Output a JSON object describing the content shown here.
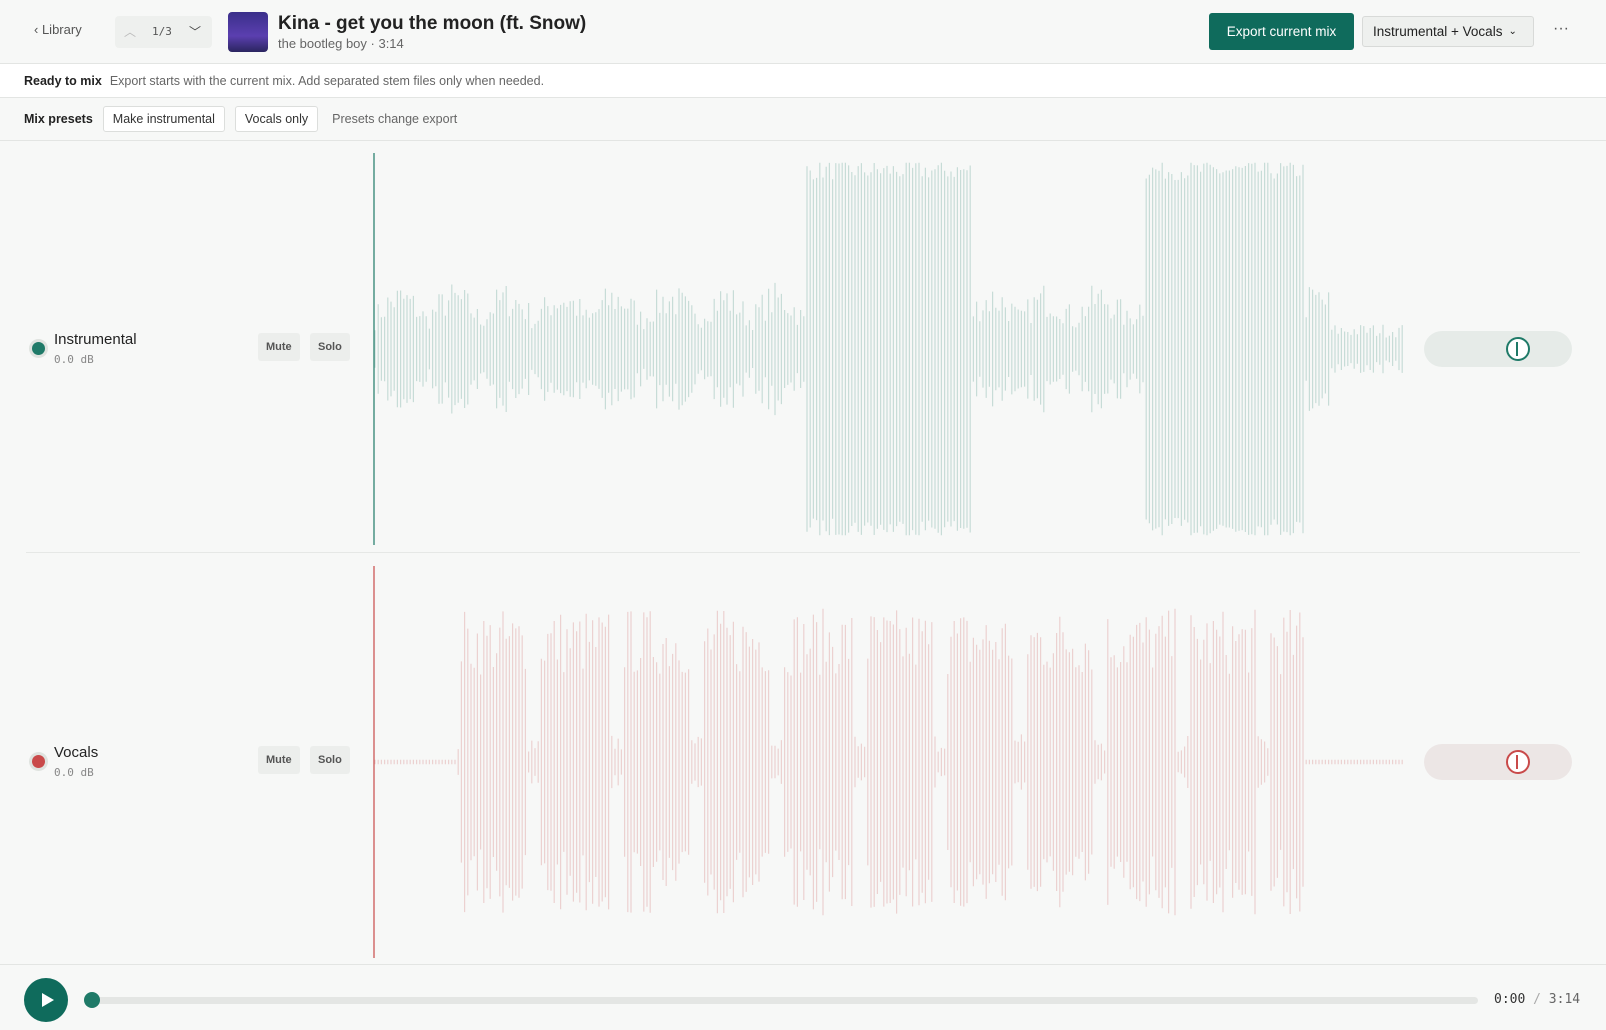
{
  "header": {
    "back": "Library",
    "pager": "1/3",
    "title": "Kina - get you the moon (ft. Snow)",
    "subtitle": "the bootleg boy · 3:14",
    "export": "Export current mix",
    "mix_select": "Instrumental + Vocals"
  },
  "status": {
    "label": "Ready to mix",
    "message": "Export starts with the current mix. Add separated stem files only when needed."
  },
  "presets": {
    "label": "Mix presets",
    "buttons": [
      "Make instrumental",
      "Vocals only"
    ],
    "note": "Presets change export"
  },
  "tracks": [
    {
      "name": "Instrumental",
      "gain": "0.0 dB",
      "mute": "Mute",
      "solo": "Solo",
      "color": "#1f7a68"
    },
    {
      "name": "Vocals",
      "gain": "0.0 dB",
      "mute": "Mute",
      "solo": "Solo",
      "color": "#c94a4a"
    }
  ],
  "transport": {
    "current": "0:00",
    "separator": "/",
    "total": "3:14"
  }
}
